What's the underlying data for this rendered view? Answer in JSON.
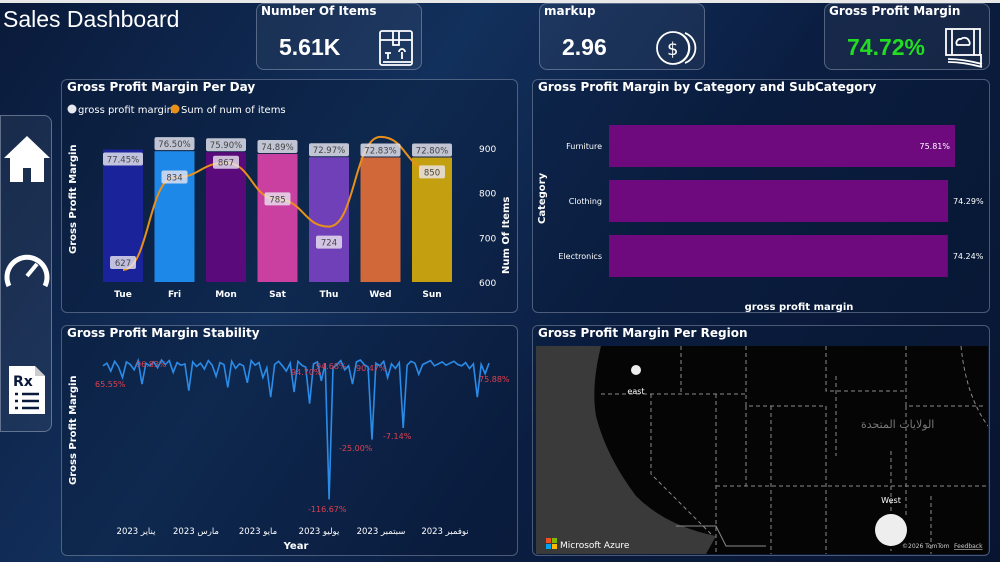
{
  "title": "Sales Dashboard",
  "kpis": [
    {
      "label": "Number Of Items",
      "value": "5.61K",
      "icon": "box-icon",
      "color": "#ffffff"
    },
    {
      "label": "markup",
      "value": "2.96",
      "icon": "coins-icon",
      "color": "#ffffff"
    },
    {
      "label": "Gross Profit Margin",
      "value": "74.72%",
      "icon": "money-icon",
      "color": "#22dd22"
    }
  ],
  "sidebar": [
    {
      "icon": "home-icon"
    },
    {
      "icon": "gauge-icon"
    },
    {
      "icon": "report-icon"
    }
  ],
  "chart_data": [
    {
      "type": "bar",
      "title": "Gross Profit Margin Per Day",
      "legend": [
        "gross profit margin",
        "Sum of num of items"
      ],
      "categories": [
        "Tue",
        "Fri",
        "Mon",
        "Sat",
        "Thu",
        "Wed",
        "Sun"
      ],
      "series": [
        {
          "name": "gross profit margin",
          "values": [
            77.45,
            76.5,
            75.9,
            74.89,
            72.97,
            72.83,
            72.8
          ],
          "labels": [
            "77.45%",
            "76.50%",
            "75.90%",
            "74.89%",
            "72.97%",
            "72.83%",
            "72.80%"
          ],
          "colors": [
            "#1a2399",
            "#1e88e8",
            "#5b0a7c",
            "#c940a0",
            "#7040b8",
            "#d0683a",
            "#c4a010"
          ]
        },
        {
          "name": "Sum of num of items",
          "type": "line",
          "values": [
            627,
            834,
            867,
            785,
            724,
            925,
            850
          ],
          "labels": [
            "627",
            "834",
            "867",
            "785",
            "724",
            "",
            "850"
          ],
          "color": "#e8901a"
        }
      ],
      "ylabel": "Gross Profit Margin",
      "y2label": "Num Of Items",
      "y2ticks": [
        "900",
        "800",
        "700",
        "600"
      ],
      "y2lim": [
        600,
        900
      ]
    },
    {
      "type": "bar",
      "orientation": "horizontal",
      "title": "Gross Profit Margin by Category and SubCategory",
      "categories": [
        "Furniture",
        "Clothing",
        "Electronics"
      ],
      "values": [
        75.81,
        74.29,
        74.24
      ],
      "labels": [
        "75.81%",
        "74.29%",
        "74.24%"
      ],
      "xlabel": "gross profit margin",
      "ylabel": "Category",
      "color": "#6e0a7e"
    },
    {
      "type": "line",
      "title": "Gross Profit Margin Stability",
      "xlabel": "Year",
      "ylabel": "Gross Profit Margin",
      "xticks": [
        "يناير 2023",
        "مارس 2023",
        "مايو 2023",
        "يوليو 2023",
        "سبتمبر 2023",
        "نوفمبر 2023"
      ],
      "color": "#2a8ce8",
      "values": [
        88,
        92,
        80,
        95,
        86,
        70,
        94,
        90,
        82,
        96,
        60,
        92,
        88,
        94,
        85,
        97,
        90,
        96,
        78,
        93,
        89,
        91,
        50,
        94,
        87,
        92,
        83,
        96,
        89,
        72,
        93,
        90,
        55,
        95,
        84,
        91,
        88,
        62,
        96,
        89,
        93,
        70,
        85,
        40,
        90,
        95,
        88,
        80,
        92,
        48,
        95,
        89,
        86,
        30,
        91,
        94,
        65,
        92,
        -116.67,
        85,
        90,
        96,
        82,
        88,
        60,
        94,
        97,
        90,
        86,
        -25,
        92,
        88,
        95,
        70,
        91,
        84,
        93,
        -7.14,
        89,
        95,
        92,
        75,
        90,
        93,
        96,
        88,
        91,
        94,
        89,
        92,
        95,
        90,
        88,
        93,
        84,
        91,
        40,
        90,
        75.88,
        92
      ],
      "annotations": [
        {
          "label": "65.55%"
        },
        {
          "label": "96.83%"
        },
        {
          "label": "94.70%"
        },
        {
          "label": "94.68%"
        },
        {
          "label": "90.47%"
        },
        {
          "label": "75.88%"
        },
        {
          "label": "-116.67%"
        },
        {
          "label": "-25.00%"
        },
        {
          "label": "-7.14%"
        }
      ],
      "annotation_color": "#e04050"
    }
  ],
  "map": {
    "title": "Gross Profit Margin Per Region",
    "regions": [
      {
        "label": "east"
      },
      {
        "label": "West"
      }
    ],
    "country_label": "الولايات المتحدة",
    "brand": "Microsoft Azure",
    "copyright": "©2026 TomTom",
    "feedback": "Feedback"
  }
}
